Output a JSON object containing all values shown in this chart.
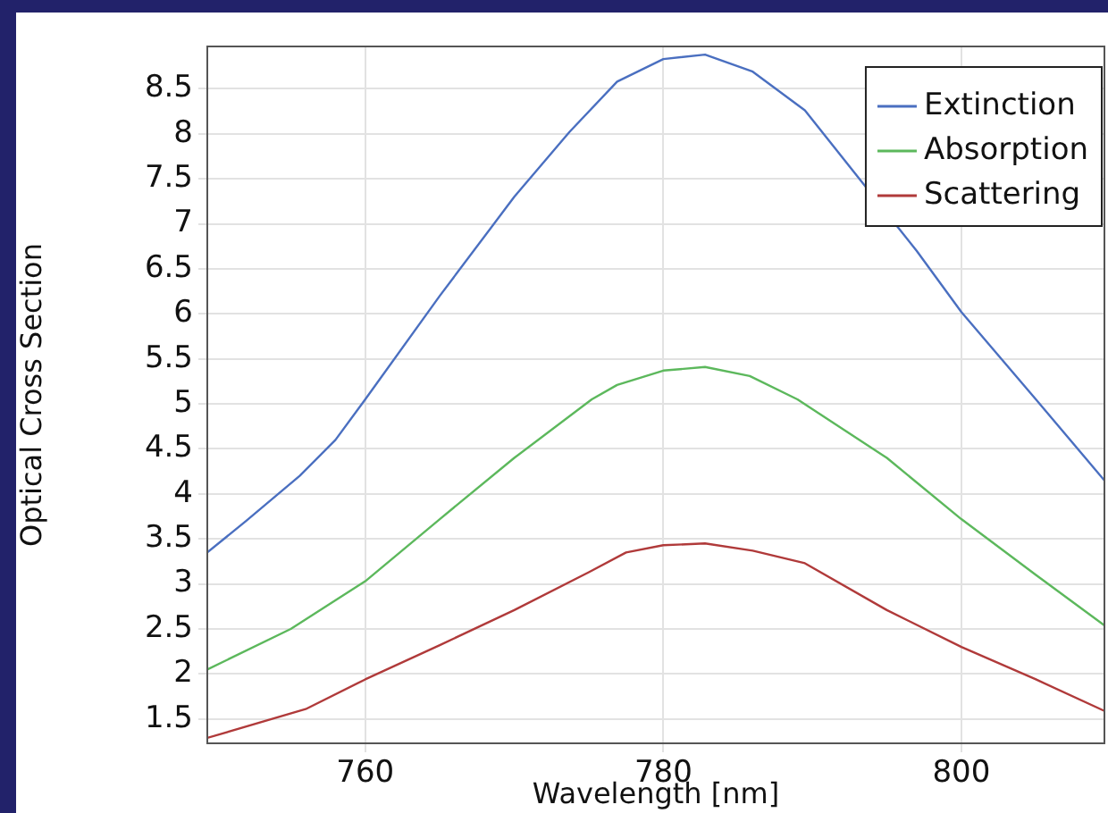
{
  "chart_data": {
    "type": "line",
    "xlabel": "Wavelength [nm]",
    "ylabel": "Optical Cross Section",
    "xlim": [
      749.4,
      809.6
    ],
    "xticks": [
      760,
      780,
      800
    ],
    "ylim": [
      1.23,
      8.97
    ],
    "yticks": [
      1.5,
      2,
      2.5,
      3,
      3.5,
      4,
      4.5,
      5,
      5.5,
      6,
      6.5,
      7,
      7.5,
      8,
      8.5
    ],
    "grid": true,
    "legend": "top right",
    "marker": "none",
    "line_style": "solid",
    "series": [
      {
        "name": "Extinction",
        "color": "#4a6fc0",
        "x": [
          749.4,
          752,
          755.6,
          758,
          760,
          765,
          770,
          773.7,
          776.9,
          780,
          782.8,
          786,
          789.5,
          797,
          800,
          805,
          809.6
        ],
        "values": [
          3.35,
          3.7,
          4.2,
          4.6,
          5.05,
          6.2,
          7.3,
          8.02,
          8.58,
          8.83,
          8.88,
          8.69,
          8.26,
          6.7,
          6.02,
          5.05,
          4.15
        ]
      },
      {
        "name": "Absorption",
        "color": "#5cb85c",
        "x": [
          749.4,
          755,
          760,
          765,
          770,
          775.2,
          776.9,
          780,
          782.8,
          785.8,
          789,
          795,
          800,
          805,
          809.6
        ],
        "values": [
          2.05,
          2.5,
          3.03,
          3.72,
          4.4,
          5.05,
          5.21,
          5.37,
          5.41,
          5.31,
          5.05,
          4.4,
          3.72,
          3.1,
          2.54
        ]
      },
      {
        "name": "Scattering",
        "color": "#b03a3a",
        "x": [
          749.4,
          756,
          760,
          765,
          770,
          775,
          777.5,
          780,
          782.8,
          786,
          789.5,
          795,
          800,
          805,
          809.6
        ],
        "values": [
          1.29,
          1.61,
          1.94,
          2.32,
          2.71,
          3.13,
          3.35,
          3.43,
          3.45,
          3.37,
          3.23,
          2.71,
          2.3,
          1.94,
          1.59
        ]
      }
    ]
  }
}
